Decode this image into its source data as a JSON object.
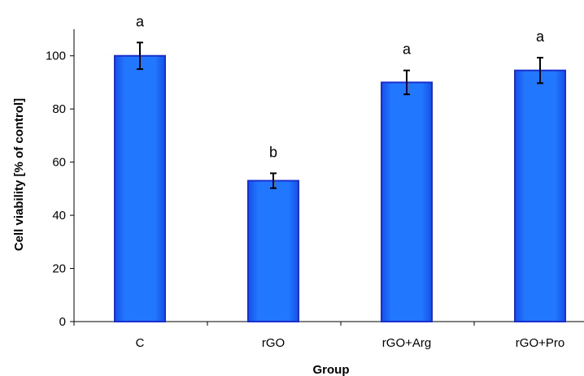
{
  "chart_data": {
    "type": "bar",
    "title": "",
    "xlabel": "Group",
    "ylabel": "Cell viability [% of control]",
    "categories": [
      "C",
      "rGO",
      "rGO+Arg",
      "rGO+Pro"
    ],
    "values": [
      100,
      53,
      90,
      94.5
    ],
    "error_bars": [
      5,
      2.8,
      4.5,
      4.8
    ],
    "significance_letters": [
      "a",
      "b",
      "a",
      "a"
    ],
    "ylim": [
      0,
      110
    ],
    "yticks": [
      0,
      20,
      40,
      60,
      80,
      100
    ],
    "ytick_labels": [
      "0",
      "20",
      "40",
      "60",
      "80",
      "100"
    ],
    "grid": false,
    "legend": "none",
    "colors": {
      "bar_fill": "#1f6fff",
      "bar_edge": "#1a2fcc",
      "error_bar": "#000000",
      "axis": "#000000"
    }
  }
}
